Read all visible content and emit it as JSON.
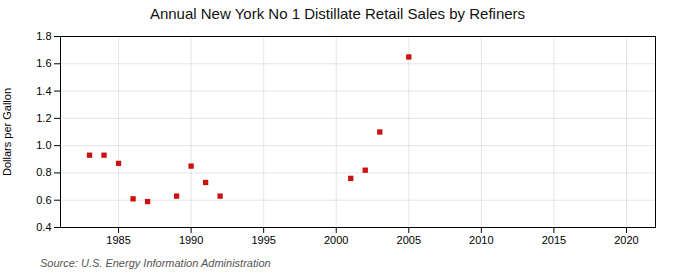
{
  "chart_data": {
    "type": "scatter",
    "title": "Annual New York No 1 Distillate Retail Sales by Refiners",
    "ylabel": "Dollars per Gallon",
    "caption": "Source: U.S. Energy Information Administration",
    "x": [
      1983,
      1984,
      1985,
      1986,
      1987,
      1989,
      1990,
      1991,
      1992,
      2001,
      2002,
      2003,
      2005
    ],
    "values": [
      0.93,
      0.93,
      0.87,
      0.61,
      0.59,
      0.63,
      0.85,
      0.73,
      0.63,
      0.76,
      0.82,
      1.1,
      1.65
    ],
    "color": "#cc1111",
    "marker": "square",
    "xlim": [
      1981,
      2022
    ],
    "xticks": [
      1985,
      1990,
      1995,
      2000,
      2005,
      2010,
      2015,
      2020
    ],
    "ylim": [
      0.4,
      1.8
    ],
    "yticks": [
      0.4,
      0.6,
      0.8,
      {
        "value": 1.0,
        "label": "1.0"
      },
      1.2,
      1.4,
      1.6,
      1.8
    ],
    "grid": true
  }
}
